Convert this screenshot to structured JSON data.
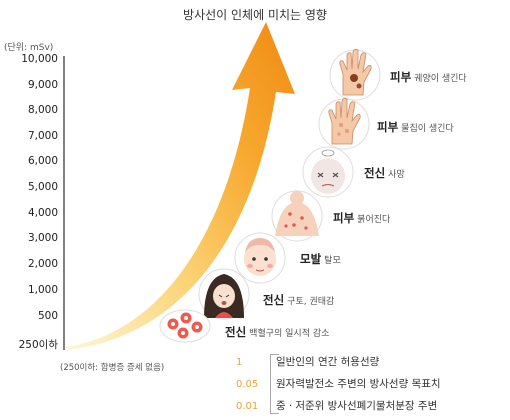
{
  "title": "방사선이 인체에 미치는 영향",
  "unit_label": "(단위: mSv)",
  "y_axis_labels": [
    "10,000",
    "9,000",
    "8,000",
    "7,000",
    "6,000",
    "5,000",
    "4,000",
    "3,000",
    "2,000",
    "1,000",
    "500",
    "250이하"
  ],
  "effects": [
    {
      "part": "피부",
      "desc": "궤양이 생긴다",
      "icon": "hand-ulcer-icon"
    },
    {
      "part": "피부",
      "desc": "물집이 생긴다",
      "icon": "hand-blister-icon"
    },
    {
      "part": "전신",
      "desc": "사망",
      "icon": "dead-face-icon"
    },
    {
      "part": "피부",
      "desc": "붉어진다",
      "icon": "red-skin-back-icon"
    },
    {
      "part": "모발",
      "desc": "탈모",
      "icon": "hair-loss-face-icon"
    },
    {
      "part": "전신",
      "desc": "구토, 권태감",
      "icon": "vomiting-girl-icon"
    },
    {
      "part": "전신",
      "desc": "백혈구의 일시적 감소",
      "icon": "blood-cells-icon"
    }
  ],
  "bottom_note": "(250이하: 합병증 증세 없음)",
  "legend": [
    {
      "value": "1",
      "label": "일반인의 연간 허용선량"
    },
    {
      "value": "0.05",
      "label": "원자력발전소 주변의 방사선량 목표치"
    },
    {
      "value": "0.01",
      "label": "중ㆍ저준위 방사선폐기물처분장 주변"
    }
  ],
  "colors": {
    "arrow_start": "#fde9a8",
    "arrow_mid": "#f8b63a",
    "arrow_end": "#f08a14",
    "accent": "#e8a33a"
  }
}
